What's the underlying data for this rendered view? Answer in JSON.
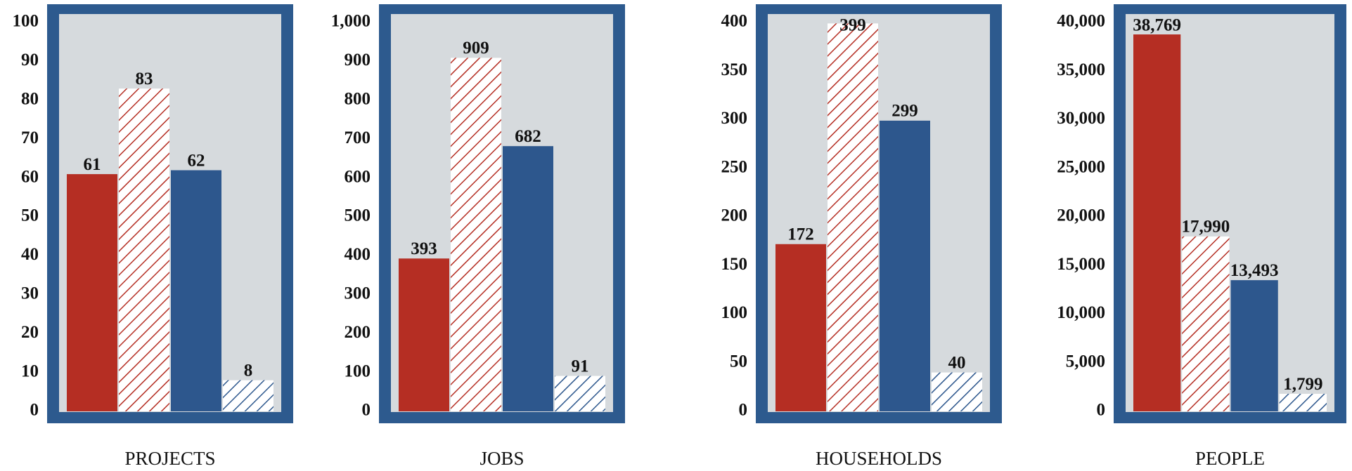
{
  "chart_data": [
    {
      "type": "bar",
      "xlabel": "PROJECTS",
      "values": [
        61,
        83,
        62,
        8
      ],
      "colors": [
        "#b52e23",
        "#b52e23",
        "#2d578d",
        "#2d578d"
      ],
      "hatch": [
        false,
        true,
        false,
        true
      ],
      "ylim": [
        0,
        100
      ],
      "yticks": [
        0,
        10,
        20,
        30,
        40,
        50,
        60,
        70,
        80,
        90,
        100
      ]
    },
    {
      "type": "bar",
      "xlabel": "JOBS",
      "values": [
        393,
        909,
        682,
        91
      ],
      "colors": [
        "#b52e23",
        "#b52e23",
        "#2d578d",
        "#2d578d"
      ],
      "hatch": [
        false,
        true,
        false,
        true
      ],
      "ylim": [
        0,
        1000
      ],
      "yticks": [
        0,
        100,
        200,
        300,
        400,
        500,
        600,
        700,
        800,
        900,
        {
          "value": 1000,
          "label": "1,000"
        }
      ]
    },
    {
      "type": "bar",
      "xlabel": "HOUSEHOLDS",
      "values": [
        172,
        399,
        299,
        40
      ],
      "colors": [
        "#b52e23",
        "#b52e23",
        "#2d578d",
        "#2d578d"
      ],
      "hatch": [
        false,
        true,
        false,
        true
      ],
      "ylim": [
        0,
        400
      ],
      "yticks": [
        0,
        50,
        100,
        150,
        200,
        250,
        300,
        350,
        400
      ]
    },
    {
      "type": "bar",
      "xlabel": "PEOPLE",
      "values": [
        38769,
        17990,
        13493,
        1799
      ],
      "value_labels": [
        "38,769",
        "17,990",
        "13,493",
        "1,799"
      ],
      "colors": [
        "#b52e23",
        "#b52e23",
        "#2d578d",
        "#2d578d"
      ],
      "hatch": [
        false,
        true,
        false,
        true
      ],
      "ylim": [
        0,
        40000
      ],
      "yticks": [
        0,
        {
          "value": 5000,
          "label": "5,000"
        },
        {
          "value": 10000,
          "label": "10,000"
        },
        {
          "value": 15000,
          "label": "15,000"
        },
        {
          "value": 20000,
          "label": "20,000"
        },
        {
          "value": 25000,
          "label": "25,000"
        },
        {
          "value": 30000,
          "label": "30,000"
        },
        {
          "value": 35000,
          "label": "35,000"
        },
        {
          "value": 40000,
          "label": "40,000"
        }
      ]
    }
  ]
}
